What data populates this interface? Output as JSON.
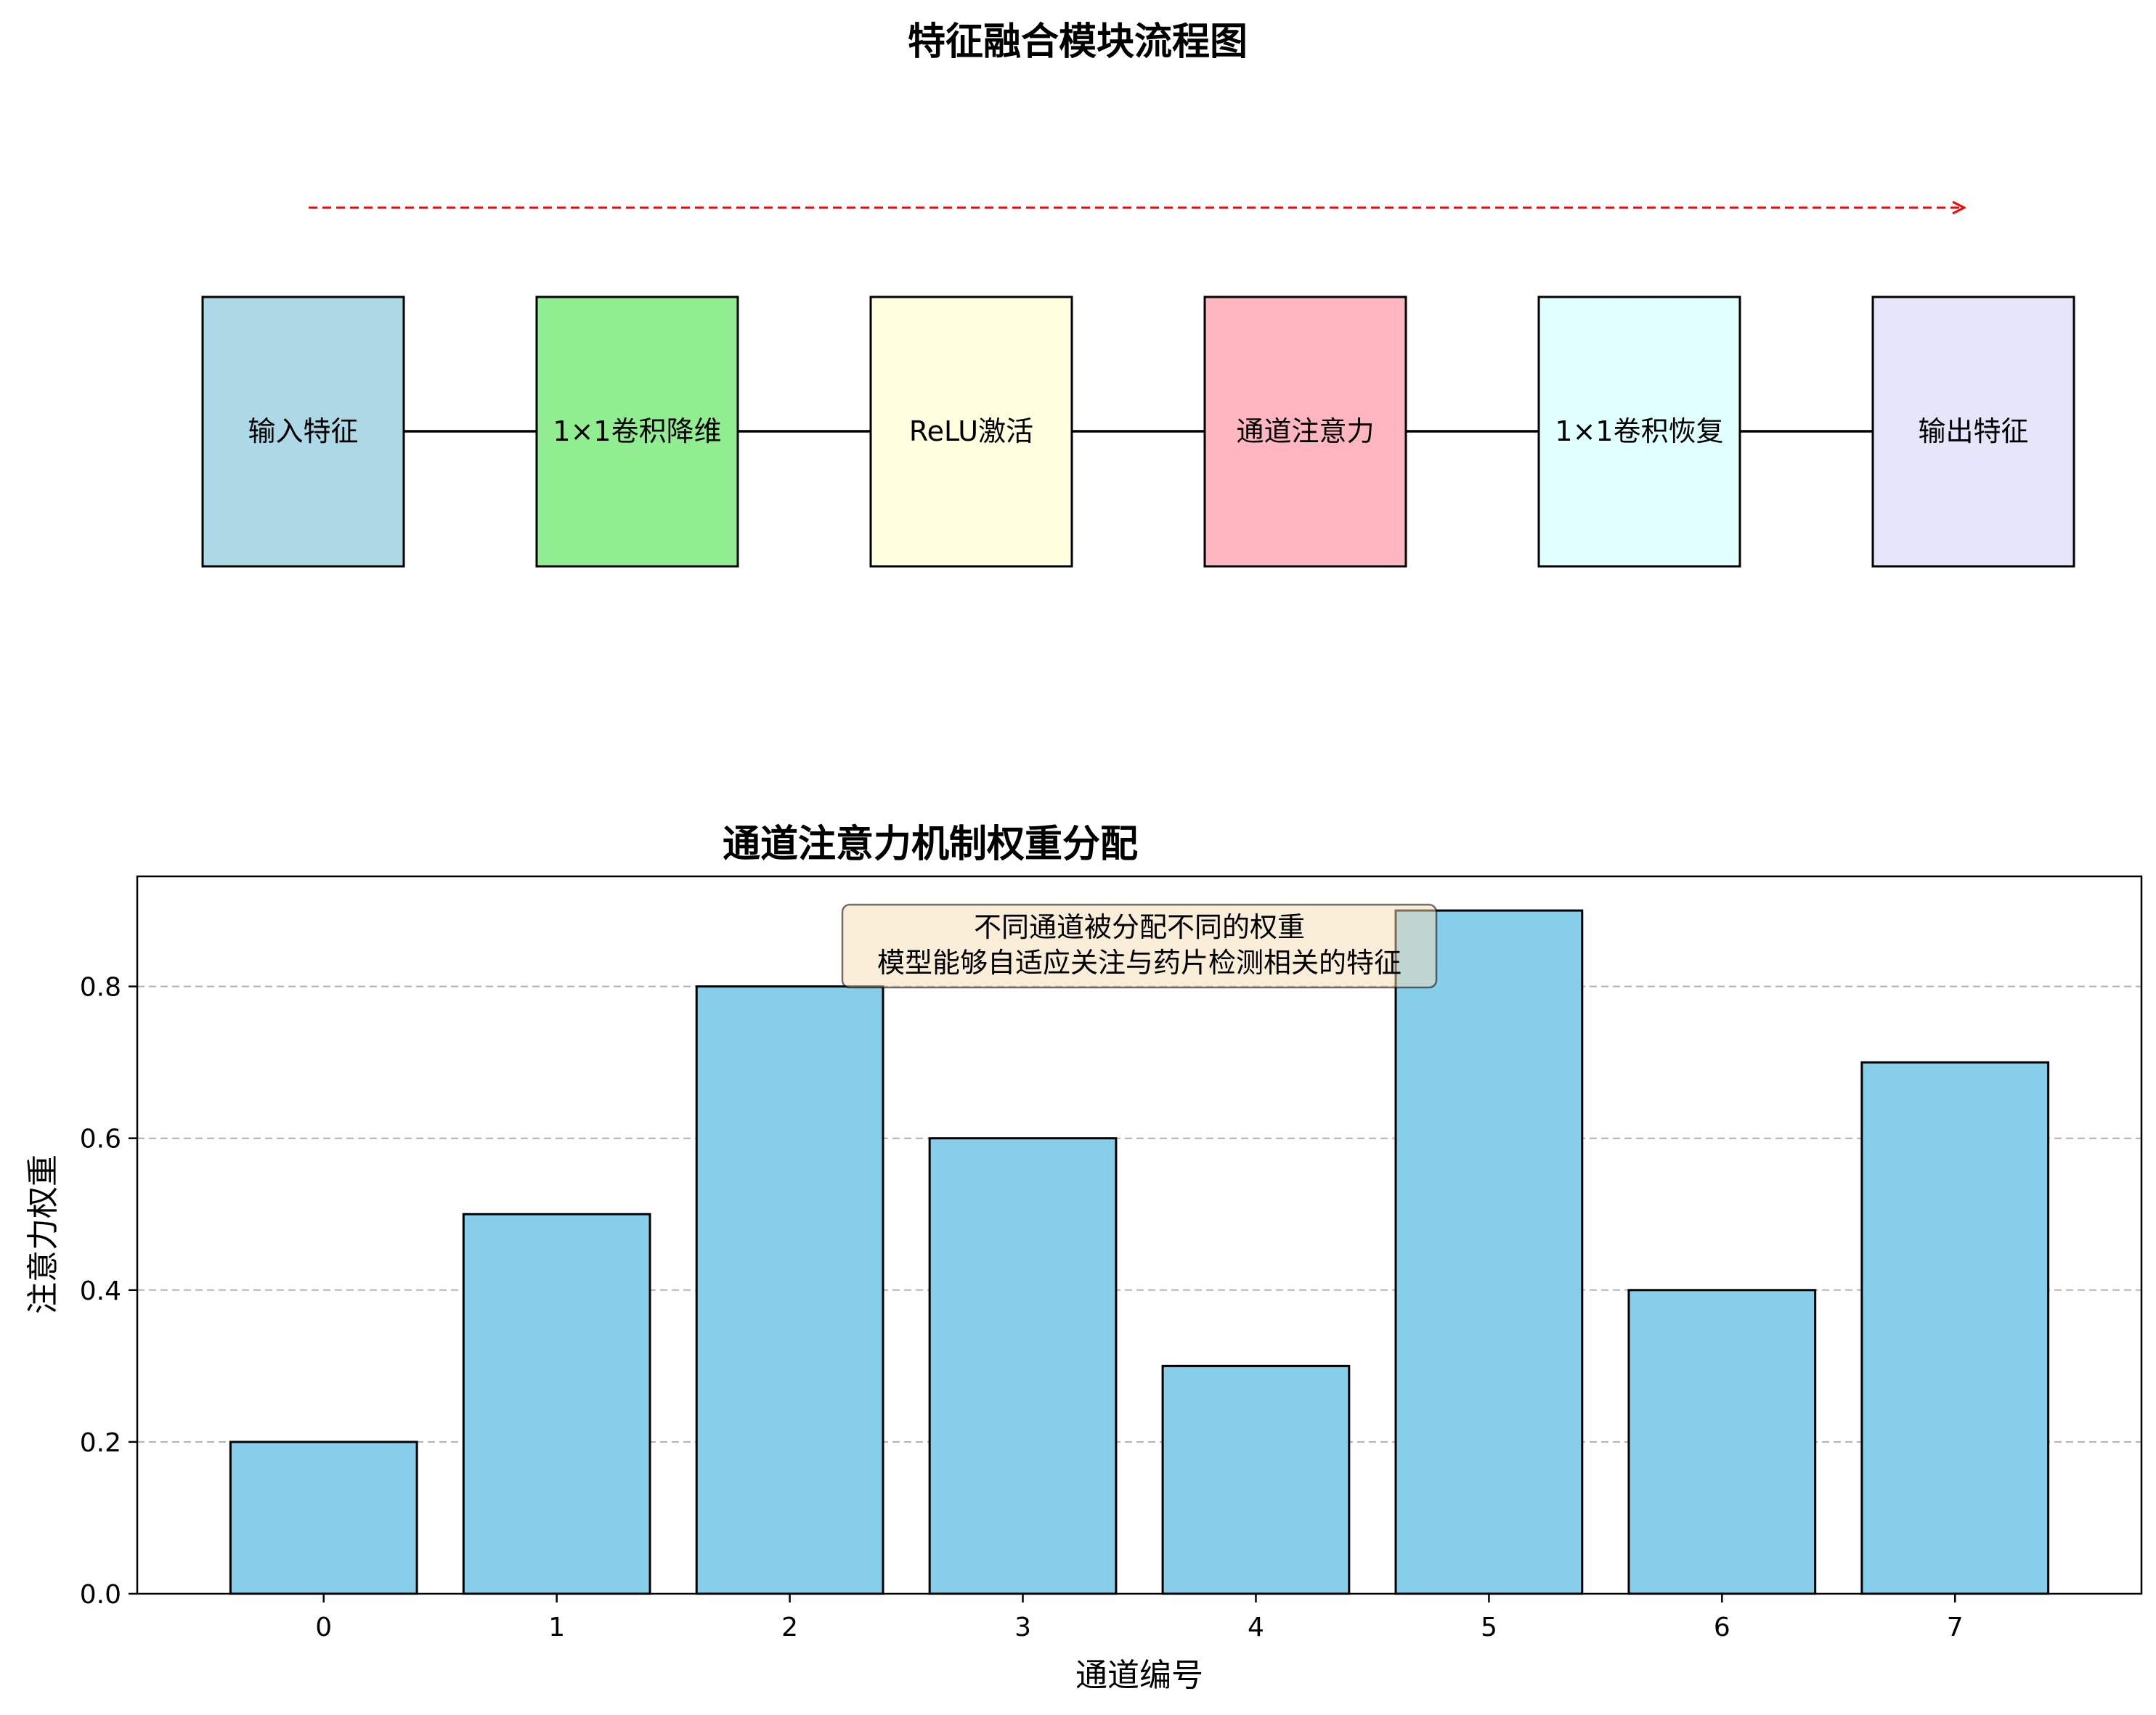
{
  "flow": {
    "title": "特征融合模块流程图",
    "steps": [
      {
        "label": "输入特征",
        "color": "#add8e6"
      },
      {
        "label": "1×1卷积降维",
        "color": "#90ee90"
      },
      {
        "label": "ReLU激活",
        "color": "#ffffe0"
      },
      {
        "label": "通道注意力",
        "color": "#ffb6c1"
      },
      {
        "label": "1×1卷积恢复",
        "color": "#e0ffff"
      },
      {
        "label": "输出特征",
        "color": "#e6e6fa"
      }
    ],
    "overall_arrow_color": "#ff0000"
  },
  "chart_data": {
    "type": "bar",
    "title": "通道注意力机制权重分配",
    "xlabel": "通道编号",
    "ylabel": "注意力权重",
    "categories": [
      "0",
      "1",
      "2",
      "3",
      "4",
      "5",
      "6",
      "7"
    ],
    "values": [
      0.2,
      0.5,
      0.8,
      0.6,
      0.3,
      0.9,
      0.4,
      0.7
    ],
    "ylim": [
      0,
      0.945
    ],
    "yticks": [
      "0.0",
      "0.2",
      "0.4",
      "0.6",
      "0.8"
    ],
    "bar_color": "#87ceeb",
    "grid": "y-dashed",
    "annotation": [
      "不同通道被分配不同的权重",
      "模型能够自适应关注与药片检测相关的特征"
    ],
    "annotation_bg": "#f5deb3"
  }
}
